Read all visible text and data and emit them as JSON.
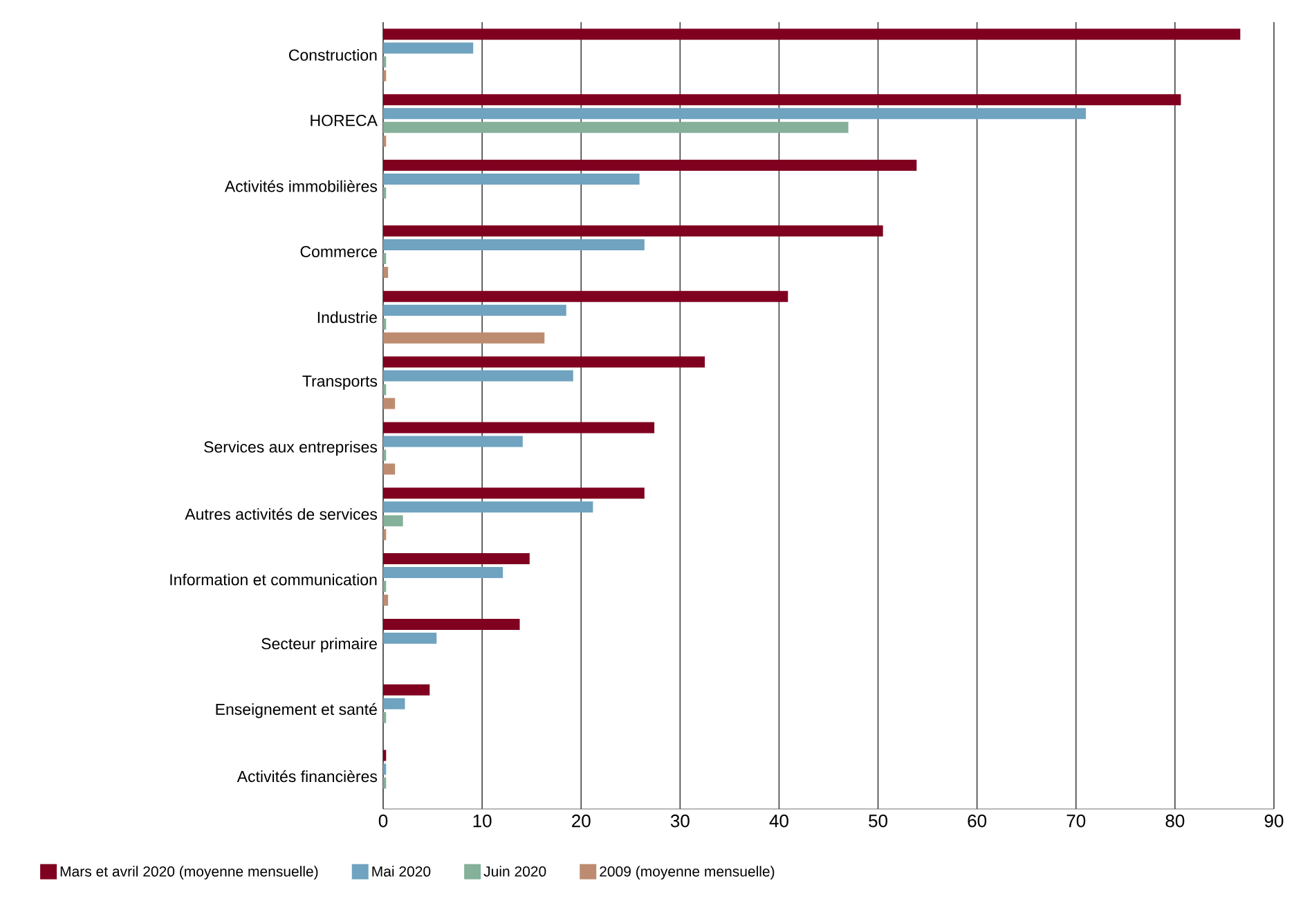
{
  "chart_data": {
    "type": "bar",
    "orientation": "horizontal",
    "categories": [
      "Construction",
      "HORECA",
      "Activités immobilières",
      "Commerce",
      "Industrie",
      "Transports",
      "Services aux entreprises",
      "Autres activités de services",
      "Information et communication",
      "Secteur primaire",
      "Enseignement et santé",
      "Activités financières"
    ],
    "series": [
      {
        "name": "Mars et avril 2020 (moyenne mensuelle)",
        "color": "#800020",
        "values": [
          86.6,
          80.6,
          53.9,
          50.5,
          40.9,
          32.5,
          27.4,
          26.4,
          14.8,
          13.8,
          4.7,
          0.3
        ]
      },
      {
        "name": "Mai 2020",
        "color": "#6fa3c0",
        "values": [
          9.1,
          71.0,
          25.9,
          26.4,
          18.5,
          19.2,
          14.1,
          21.2,
          12.1,
          5.4,
          2.2,
          0.3
        ]
      },
      {
        "name": "Juin 2020",
        "color": "#85b09a",
        "values": [
          0.3,
          47.0,
          0.3,
          0.3,
          0.3,
          0.3,
          0.3,
          2.0,
          0.3,
          null,
          0.3,
          0.3
        ]
      },
      {
        "name": "2009 (moyenne mensuelle)",
        "color": "#bd8c70",
        "values": [
          0.3,
          0.3,
          null,
          0.5,
          16.3,
          1.2,
          1.2,
          0.3,
          0.5,
          null,
          null,
          null
        ]
      }
    ],
    "xlim": [
      0,
      90
    ],
    "xticks": [
      0,
      10,
      20,
      30,
      40,
      50,
      60,
      70,
      80,
      90
    ],
    "grid": "x",
    "legend": "bottom"
  }
}
